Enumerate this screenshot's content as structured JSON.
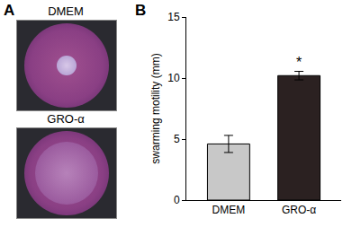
{
  "panel_labels": [
    "A",
    "B"
  ],
  "image_labels": [
    "DMEM",
    "GRO-α"
  ],
  "chart_data": {
    "type": "bar",
    "categories": [
      "DMEM",
      "GRO-α"
    ],
    "values": [
      4.6,
      10.2
    ],
    "errors": [
      0.7,
      0.35
    ],
    "colors": [
      "#c8c8c8",
      "#2b2121"
    ],
    "ylabel": "swarming motility (mm)",
    "ylim": [
      0,
      15
    ],
    "yticks": [
      0,
      5,
      10,
      15
    ],
    "grid": false,
    "annotations": [
      {
        "category": "GRO-α",
        "text": "*"
      }
    ]
  }
}
